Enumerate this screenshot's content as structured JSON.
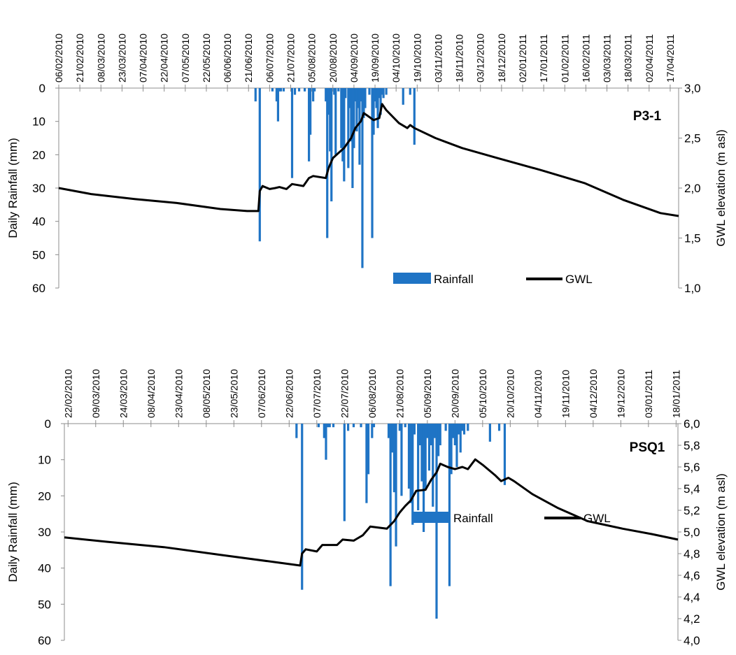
{
  "chart_data": [
    {
      "type": "bar+line",
      "title": "P3-1",
      "left_axis_label": "Daily Rainfall (mm)",
      "right_axis_label": "GWL elevation (m asl)",
      "left_axis": {
        "min": 0,
        "max": 60,
        "inverted": true,
        "ticks": [
          "0",
          "10",
          "20",
          "30",
          "40",
          "50",
          "60"
        ]
      },
      "right_axis": {
        "min": 1.0,
        "max": 3.0,
        "ticks": [
          "1,0",
          "1,5",
          "2,0",
          "2,5",
          "3,0"
        ]
      },
      "x_start": "2010-02-06",
      "x_end": "2011-04-23",
      "x_ticks": [
        "06/02/2010",
        "21/02/2010",
        "08/03/2010",
        "23/03/2010",
        "07/04/2010",
        "22/04/2010",
        "07/05/2010",
        "22/05/2010",
        "06/06/2010",
        "21/06/2010",
        "06/07/2010",
        "21/07/2010",
        "05/08/2010",
        "20/08/2010",
        "04/09/2010",
        "19/09/2010",
        "04/10/2010",
        "19/10/2010",
        "03/11/2010",
        "18/11/2010",
        "03/12/2010",
        "18/12/2010",
        "02/01/2011",
        "17/01/2011",
        "01/02/2011",
        "16/02/2011",
        "03/03/2011",
        "18/03/2011",
        "02/04/2011",
        "17/04/2011"
      ],
      "legend": [
        "Rainfall",
        "GWL"
      ],
      "rainfall_color": "#1f74c5",
      "gwl_color": "#000000",
      "rainfall": [
        {
          "x": "2010-06-26",
          "y": 4
        },
        {
          "x": "2010-06-29",
          "y": 46
        },
        {
          "x": "2010-07-08",
          "y": 1
        },
        {
          "x": "2010-07-11",
          "y": 4
        },
        {
          "x": "2010-07-12",
          "y": 10
        },
        {
          "x": "2010-07-13",
          "y": 1
        },
        {
          "x": "2010-07-14",
          "y": 1
        },
        {
          "x": "2010-07-16",
          "y": 1
        },
        {
          "x": "2010-07-22",
          "y": 27
        },
        {
          "x": "2010-07-24",
          "y": 2
        },
        {
          "x": "2010-07-27",
          "y": 1
        },
        {
          "x": "2010-07-31",
          "y": 1
        },
        {
          "x": "2010-08-03",
          "y": 22
        },
        {
          "x": "2010-08-04",
          "y": 14
        },
        {
          "x": "2010-08-06",
          "y": 4
        },
        {
          "x": "2010-08-07",
          "y": 1
        },
        {
          "x": "2010-08-15",
          "y": 4
        },
        {
          "x": "2010-08-16",
          "y": 45
        },
        {
          "x": "2010-08-17",
          "y": 8
        },
        {
          "x": "2010-08-18",
          "y": 19
        },
        {
          "x": "2010-08-19",
          "y": 34
        },
        {
          "x": "2010-08-21",
          "y": 2
        },
        {
          "x": "2010-08-22",
          "y": 20
        },
        {
          "x": "2010-08-24",
          "y": 1
        },
        {
          "x": "2010-08-26",
          "y": 18
        },
        {
          "x": "2010-08-27",
          "y": 22
        },
        {
          "x": "2010-08-28",
          "y": 28
        },
        {
          "x": "2010-08-29",
          "y": 3
        },
        {
          "x": "2010-08-31",
          "y": 24
        },
        {
          "x": "2010-09-01",
          "y": 6
        },
        {
          "x": "2010-09-02",
          "y": 16
        },
        {
          "x": "2010-09-03",
          "y": 30
        },
        {
          "x": "2010-09-04",
          "y": 18
        },
        {
          "x": "2010-09-05",
          "y": 4
        },
        {
          "x": "2010-09-06",
          "y": 13
        },
        {
          "x": "2010-09-07",
          "y": 6
        },
        {
          "x": "2010-09-08",
          "y": 23
        },
        {
          "x": "2010-09-09",
          "y": 4
        },
        {
          "x": "2010-09-10",
          "y": 54
        },
        {
          "x": "2010-09-11",
          "y": 9
        },
        {
          "x": "2010-09-12",
          "y": 6
        },
        {
          "x": "2010-09-15",
          "y": 2
        },
        {
          "x": "2010-09-17",
          "y": 45
        },
        {
          "x": "2010-09-18",
          "y": 14
        },
        {
          "x": "2010-09-19",
          "y": 4
        },
        {
          "x": "2010-09-20",
          "y": 6
        },
        {
          "x": "2010-09-21",
          "y": 12
        },
        {
          "x": "2010-09-22",
          "y": 3
        },
        {
          "x": "2010-09-23",
          "y": 8
        },
        {
          "x": "2010-09-24",
          "y": 2
        },
        {
          "x": "2010-09-25",
          "y": 3
        },
        {
          "x": "2010-09-27",
          "y": 2
        },
        {
          "x": "2010-10-09",
          "y": 5
        },
        {
          "x": "2010-10-14",
          "y": 2
        },
        {
          "x": "2010-10-17",
          "y": 17
        }
      ],
      "gwl": [
        {
          "x": "2010-02-06",
          "y": 2.0
        },
        {
          "x": "2010-03-01",
          "y": 1.94
        },
        {
          "x": "2010-04-01",
          "y": 1.89
        },
        {
          "x": "2010-05-01",
          "y": 1.85
        },
        {
          "x": "2010-06-01",
          "y": 1.79
        },
        {
          "x": "2010-06-20",
          "y": 1.77
        },
        {
          "x": "2010-06-28",
          "y": 1.77
        },
        {
          "x": "2010-06-29",
          "y": 1.97
        },
        {
          "x": "2010-07-01",
          "y": 2.02
        },
        {
          "x": "2010-07-06",
          "y": 1.99
        },
        {
          "x": "2010-07-10",
          "y": 2.0
        },
        {
          "x": "2010-07-13",
          "y": 2.01
        },
        {
          "x": "2010-07-18",
          "y": 1.99
        },
        {
          "x": "2010-07-22",
          "y": 2.04
        },
        {
          "x": "2010-07-26",
          "y": 2.03
        },
        {
          "x": "2010-07-30",
          "y": 2.02
        },
        {
          "x": "2010-08-03",
          "y": 2.1
        },
        {
          "x": "2010-08-06",
          "y": 2.12
        },
        {
          "x": "2010-08-15",
          "y": 2.1
        },
        {
          "x": "2010-08-17",
          "y": 2.2
        },
        {
          "x": "2010-08-20",
          "y": 2.3
        },
        {
          "x": "2010-08-24",
          "y": 2.35
        },
        {
          "x": "2010-08-28",
          "y": 2.4
        },
        {
          "x": "2010-09-02",
          "y": 2.5
        },
        {
          "x": "2010-09-05",
          "y": 2.6
        },
        {
          "x": "2010-09-09",
          "y": 2.67
        },
        {
          "x": "2010-09-11",
          "y": 2.75
        },
        {
          "x": "2010-09-14",
          "y": 2.72
        },
        {
          "x": "2010-09-18",
          "y": 2.68
        },
        {
          "x": "2010-09-22",
          "y": 2.7
        },
        {
          "x": "2010-09-24",
          "y": 2.84
        },
        {
          "x": "2010-09-27",
          "y": 2.78
        },
        {
          "x": "2010-10-06",
          "y": 2.65
        },
        {
          "x": "2010-10-12",
          "y": 2.6
        },
        {
          "x": "2010-10-14",
          "y": 2.63
        },
        {
          "x": "2010-10-17",
          "y": 2.6
        },
        {
          "x": "2010-11-01",
          "y": 2.5
        },
        {
          "x": "2010-11-20",
          "y": 2.4
        },
        {
          "x": "2010-12-15",
          "y": 2.3
        },
        {
          "x": "2011-01-15",
          "y": 2.18
        },
        {
          "x": "2011-02-15",
          "y": 2.05
        },
        {
          "x": "2011-03-15",
          "y": 1.88
        },
        {
          "x": "2011-04-10",
          "y": 1.75
        },
        {
          "x": "2011-04-23",
          "y": 1.72
        }
      ]
    },
    {
      "type": "bar+line",
      "title": "PSQ1",
      "left_axis_label": "Daily Rainfall (mm)",
      "right_axis_label": "GWL elevation (m asl)",
      "left_axis": {
        "min": 0,
        "max": 60,
        "inverted": true,
        "ticks": [
          "0",
          "10",
          "20",
          "30",
          "40",
          "50",
          "60"
        ]
      },
      "right_axis": {
        "min": 4.0,
        "max": 6.0,
        "ticks": [
          "4,0",
          "4,2",
          "4,4",
          "4,6",
          "4,8",
          "5,0",
          "5,2",
          "5,4",
          "5,6",
          "5,8",
          "6,0"
        ]
      },
      "x_start": "2010-02-20",
      "x_end": "2011-01-19",
      "x_ticks": [
        "22/02/2010",
        "09/03/2010",
        "24/03/2010",
        "08/04/2010",
        "23/04/2010",
        "08/05/2010",
        "23/05/2010",
        "07/06/2010",
        "22/06/2010",
        "07/07/2010",
        "22/07/2010",
        "06/08/2010",
        "21/08/2010",
        "05/09/2010",
        "20/09/2010",
        "05/10/2010",
        "20/10/2010",
        "04/11/2010",
        "19/11/2010",
        "04/12/2010",
        "19/12/2010",
        "03/01/2011",
        "18/01/2011"
      ],
      "legend": [
        "Rainfall",
        "GWL"
      ],
      "rainfall_color": "#1f74c5",
      "gwl_color": "#000000",
      "rainfall": [
        {
          "x": "2010-06-26",
          "y": 4
        },
        {
          "x": "2010-06-29",
          "y": 46
        },
        {
          "x": "2010-07-08",
          "y": 1
        },
        {
          "x": "2010-07-11",
          "y": 4
        },
        {
          "x": "2010-07-12",
          "y": 10
        },
        {
          "x": "2010-07-13",
          "y": 1
        },
        {
          "x": "2010-07-14",
          "y": 1
        },
        {
          "x": "2010-07-16",
          "y": 1
        },
        {
          "x": "2010-07-22",
          "y": 27
        },
        {
          "x": "2010-07-24",
          "y": 2
        },
        {
          "x": "2010-07-27",
          "y": 1
        },
        {
          "x": "2010-07-31",
          "y": 1
        },
        {
          "x": "2010-08-03",
          "y": 22
        },
        {
          "x": "2010-08-04",
          "y": 14
        },
        {
          "x": "2010-08-06",
          "y": 4
        },
        {
          "x": "2010-08-07",
          "y": 1
        },
        {
          "x": "2010-08-15",
          "y": 4
        },
        {
          "x": "2010-08-16",
          "y": 45
        },
        {
          "x": "2010-08-17",
          "y": 8
        },
        {
          "x": "2010-08-18",
          "y": 19
        },
        {
          "x": "2010-08-19",
          "y": 34
        },
        {
          "x": "2010-08-21",
          "y": 2
        },
        {
          "x": "2010-08-22",
          "y": 20
        },
        {
          "x": "2010-08-24",
          "y": 1
        },
        {
          "x": "2010-08-26",
          "y": 18
        },
        {
          "x": "2010-08-27",
          "y": 22
        },
        {
          "x": "2010-08-28",
          "y": 28
        },
        {
          "x": "2010-08-29",
          "y": 3
        },
        {
          "x": "2010-08-31",
          "y": 24
        },
        {
          "x": "2010-09-01",
          "y": 6
        },
        {
          "x": "2010-09-02",
          "y": 16
        },
        {
          "x": "2010-09-03",
          "y": 30
        },
        {
          "x": "2010-09-04",
          "y": 18
        },
        {
          "x": "2010-09-05",
          "y": 4
        },
        {
          "x": "2010-09-06",
          "y": 13
        },
        {
          "x": "2010-09-07",
          "y": 6
        },
        {
          "x": "2010-09-08",
          "y": 23
        },
        {
          "x": "2010-09-09",
          "y": 4
        },
        {
          "x": "2010-09-10",
          "y": 54
        },
        {
          "x": "2010-09-11",
          "y": 9
        },
        {
          "x": "2010-09-12",
          "y": 6
        },
        {
          "x": "2010-09-15",
          "y": 2
        },
        {
          "x": "2010-09-17",
          "y": 45
        },
        {
          "x": "2010-09-18",
          "y": 14
        },
        {
          "x": "2010-09-19",
          "y": 4
        },
        {
          "x": "2010-09-20",
          "y": 6
        },
        {
          "x": "2010-09-21",
          "y": 12
        },
        {
          "x": "2010-09-22",
          "y": 3
        },
        {
          "x": "2010-09-23",
          "y": 8
        },
        {
          "x": "2010-09-24",
          "y": 2
        },
        {
          "x": "2010-09-25",
          "y": 3
        },
        {
          "x": "2010-09-27",
          "y": 2
        },
        {
          "x": "2010-10-09",
          "y": 5
        },
        {
          "x": "2010-10-14",
          "y": 2
        },
        {
          "x": "2010-10-17",
          "y": 17
        }
      ],
      "gwl": [
        {
          "x": "2010-02-20",
          "y": 4.95
        },
        {
          "x": "2010-03-15",
          "y": 4.91
        },
        {
          "x": "2010-04-15",
          "y": 4.86
        },
        {
          "x": "2010-05-15",
          "y": 4.79
        },
        {
          "x": "2010-06-15",
          "y": 4.72
        },
        {
          "x": "2010-06-28",
          "y": 4.69
        },
        {
          "x": "2010-06-29",
          "y": 4.8
        },
        {
          "x": "2010-07-01",
          "y": 4.84
        },
        {
          "x": "2010-07-07",
          "y": 4.82
        },
        {
          "x": "2010-07-10",
          "y": 4.88
        },
        {
          "x": "2010-07-18",
          "y": 4.88
        },
        {
          "x": "2010-07-21",
          "y": 4.93
        },
        {
          "x": "2010-07-27",
          "y": 4.92
        },
        {
          "x": "2010-08-01",
          "y": 4.97
        },
        {
          "x": "2010-08-05",
          "y": 5.05
        },
        {
          "x": "2010-08-14",
          "y": 5.03
        },
        {
          "x": "2010-08-18",
          "y": 5.1
        },
        {
          "x": "2010-08-21",
          "y": 5.18
        },
        {
          "x": "2010-08-24",
          "y": 5.24
        },
        {
          "x": "2010-08-27",
          "y": 5.29
        },
        {
          "x": "2010-08-30",
          "y": 5.38
        },
        {
          "x": "2010-09-04",
          "y": 5.39
        },
        {
          "x": "2010-09-07",
          "y": 5.48
        },
        {
          "x": "2010-09-10",
          "y": 5.55
        },
        {
          "x": "2010-09-12",
          "y": 5.63
        },
        {
          "x": "2010-09-16",
          "y": 5.6
        },
        {
          "x": "2010-09-20",
          "y": 5.58
        },
        {
          "x": "2010-09-24",
          "y": 5.6
        },
        {
          "x": "2010-09-27",
          "y": 5.58
        },
        {
          "x": "2010-10-01",
          "y": 5.67
        },
        {
          "x": "2010-10-05",
          "y": 5.62
        },
        {
          "x": "2010-10-12",
          "y": 5.52
        },
        {
          "x": "2010-10-15",
          "y": 5.47
        },
        {
          "x": "2010-10-19",
          "y": 5.5
        },
        {
          "x": "2010-10-22",
          "y": 5.47
        },
        {
          "x": "2010-11-01",
          "y": 5.35
        },
        {
          "x": "2010-11-15",
          "y": 5.22
        },
        {
          "x": "2010-12-01",
          "y": 5.1
        },
        {
          "x": "2010-12-20",
          "y": 5.03
        },
        {
          "x": "2011-01-05",
          "y": 4.98
        },
        {
          "x": "2011-01-19",
          "y": 4.93
        }
      ]
    }
  ]
}
